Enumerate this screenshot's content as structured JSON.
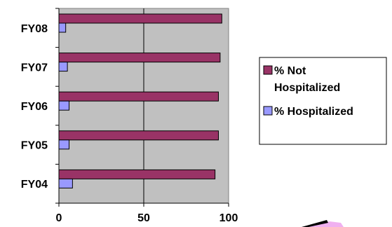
{
  "chart_data": {
    "type": "bar",
    "orientation": "horizontal",
    "categories": [
      "FY04",
      "FY05",
      "FY06",
      "FY07",
      "FY08"
    ],
    "series": [
      {
        "name": "% Not Hospitalized",
        "values": [
          92,
          94,
          94,
          95,
          96
        ],
        "color": "#993366"
      },
      {
        "name": "% Hospitalized",
        "values": [
          8,
          6,
          6,
          5,
          4
        ],
        "color": "#9999ff"
      }
    ],
    "xlim": [
      0,
      100
    ],
    "xticks": [
      "0",
      "50",
      "100"
    ],
    "grid": "vertical",
    "plot_background": "#c0c0c0",
    "legend_position": "right",
    "title": "",
    "xlabel": "",
    "ylabel": ""
  }
}
